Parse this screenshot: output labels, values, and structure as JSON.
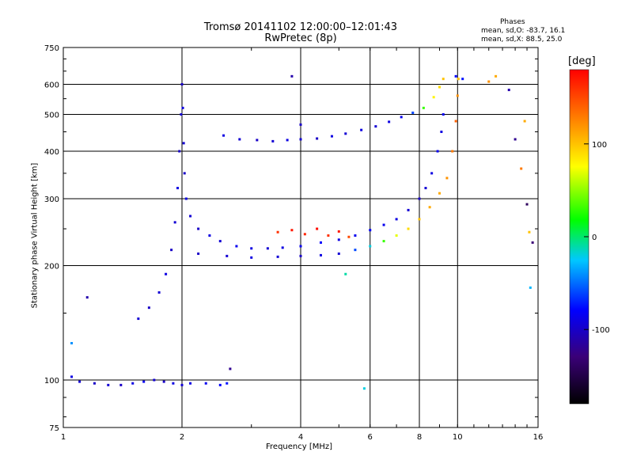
{
  "header": {
    "title_line1": "Tromsø 20141102 12:00:00–12:01:43",
    "title_line2": "RwPretec (8p)",
    "stats_title": "Phases",
    "stats_o": "mean, sd,O: -83.7, 16.1",
    "stats_x": "mean, sd,X:  88.5, 25.0"
  },
  "colorbar": {
    "label": "[deg]",
    "ticks": [
      "100",
      "0",
      "-100"
    ],
    "tick_values": [
      100,
      0,
      -100
    ],
    "range": [
      -180,
      180
    ],
    "colors": [
      "#000000",
      "#3a0077",
      "#0000ff",
      "#00c8ff",
      "#00ff00",
      "#ffff00",
      "#ff7a00",
      "#ff0000"
    ]
  },
  "chart_data": {
    "type": "scatter",
    "title": "Tromsø 20141102 12:00:00–12:01:43",
    "subtitle": "RwPretec (8p)",
    "xlabel": "Frequency [MHz]",
    "ylabel": "Stationary phase Virtual Height [km]",
    "x_scale": "log",
    "y_scale": "log",
    "xlim": [
      1,
      16
    ],
    "ylim": [
      75,
      750
    ],
    "x_ticks": [
      1,
      2,
      4,
      6,
      8,
      10,
      16
    ],
    "x_tick_labels": [
      "1",
      "2",
      "4",
      "6",
      "8",
      "10",
      "16"
    ],
    "y_ticks": [
      75,
      100,
      200,
      300,
      400,
      500,
      600,
      750
    ],
    "y_tick_labels": [
      "75",
      "100",
      "200",
      "300",
      "400",
      "500",
      "600",
      "750"
    ],
    "grid": true,
    "color_by": "phase [deg]",
    "series": [
      {
        "points": [
          [
            1.05,
            102,
            -90
          ],
          [
            1.1,
            99,
            -95
          ],
          [
            1.2,
            98,
            -100
          ],
          [
            1.3,
            97,
            -95
          ],
          [
            1.4,
            97,
            -100
          ],
          [
            1.5,
            98,
            -90
          ],
          [
            1.6,
            99,
            -85
          ],
          [
            1.7,
            100,
            -95
          ],
          [
            1.8,
            99,
            -100
          ],
          [
            1.9,
            98,
            -90
          ],
          [
            2.0,
            97,
            -95
          ],
          [
            2.1,
            98,
            -90
          ],
          [
            2.3,
            98,
            -85
          ],
          [
            2.5,
            97,
            -80
          ],
          [
            2.6,
            98,
            -75
          ]
        ]
      },
      {
        "points": [
          [
            1.55,
            145,
            -95
          ],
          [
            1.65,
            155,
            -100
          ],
          [
            1.75,
            170,
            -95
          ],
          [
            1.82,
            190,
            -90
          ],
          [
            1.88,
            220,
            -100
          ],
          [
            1.92,
            260,
            -95
          ],
          [
            1.95,
            320,
            -90
          ],
          [
            1.97,
            400,
            -100
          ],
          [
            1.99,
            500,
            -95
          ],
          [
            2.0,
            600,
            -100
          ],
          [
            2.01,
            520,
            -90
          ],
          [
            2.02,
            420,
            -95
          ],
          [
            2.03,
            350,
            -100
          ],
          [
            2.05,
            300,
            -90
          ],
          [
            2.1,
            270,
            -95
          ],
          [
            2.2,
            250,
            -100
          ],
          [
            2.35,
            240,
            -90
          ],
          [
            2.5,
            232,
            -95
          ],
          [
            2.75,
            225,
            -85
          ],
          [
            3.0,
            222,
            -90
          ],
          [
            3.3,
            222,
            -95
          ],
          [
            3.6,
            223,
            -90
          ],
          [
            4.0,
            225,
            -85
          ],
          [
            4.5,
            230,
            -80
          ],
          [
            5.0,
            234,
            -90
          ],
          [
            5.5,
            240,
            -85
          ],
          [
            6.0,
            248,
            -80
          ],
          [
            6.5,
            256,
            -85
          ],
          [
            7.0,
            265,
            -90
          ],
          [
            7.5,
            280,
            -95
          ],
          [
            8.0,
            300,
            -100
          ],
          [
            8.3,
            320,
            -95
          ],
          [
            8.6,
            350,
            -90
          ],
          [
            8.9,
            400,
            -85
          ],
          [
            9.1,
            450,
            -90
          ],
          [
            9.2,
            500,
            -85
          ]
        ]
      },
      {
        "points": [
          [
            2.2,
            215,
            -100
          ],
          [
            2.6,
            212,
            -95
          ],
          [
            3.0,
            210,
            -90
          ],
          [
            3.5,
            211,
            -95
          ],
          [
            4.0,
            212,
            -100
          ],
          [
            4.5,
            213,
            -90
          ],
          [
            5.0,
            215,
            -95
          ],
          [
            5.5,
            220,
            -60
          ],
          [
            6.0,
            225,
            -20
          ],
          [
            6.5,
            232,
            30
          ],
          [
            7.0,
            240,
            70
          ],
          [
            7.5,
            250,
            90
          ],
          [
            8.0,
            265,
            100
          ],
          [
            8.5,
            285,
            110
          ],
          [
            9.0,
            310,
            110
          ],
          [
            9.4,
            340,
            120
          ],
          [
            9.7,
            400,
            130
          ],
          [
            9.9,
            480,
            140
          ],
          [
            10.0,
            560,
            120
          ],
          [
            10.05,
            620,
            100
          ]
        ]
      },
      {
        "points": [
          [
            3.5,
            245,
            160
          ],
          [
            3.8,
            248,
            170
          ],
          [
            4.1,
            242,
            165
          ],
          [
            4.4,
            250,
            175
          ],
          [
            4.7,
            240,
            160
          ],
          [
            5.0,
            246,
            170
          ],
          [
            5.3,
            238,
            150
          ]
        ]
      },
      {
        "points": [
          [
            2.55,
            440,
            -90
          ],
          [
            2.8,
            430,
            -95
          ],
          [
            3.1,
            428,
            -100
          ],
          [
            3.4,
            425,
            -95
          ],
          [
            3.7,
            428,
            -90
          ],
          [
            4.0,
            430,
            -95
          ],
          [
            4.4,
            432,
            -100
          ],
          [
            4.8,
            438,
            -90
          ],
          [
            5.2,
            445,
            -95
          ],
          [
            5.7,
            455,
            -90
          ],
          [
            6.2,
            465,
            -95
          ],
          [
            6.7,
            478,
            -90
          ],
          [
            7.2,
            492,
            -85
          ],
          [
            7.7,
            505,
            -60
          ],
          [
            8.2,
            520,
            30
          ],
          [
            8.7,
            555,
            80
          ],
          [
            9.0,
            590,
            90
          ],
          [
            9.2,
            620,
            100
          ]
        ]
      },
      {
        "points": [
          [
            9.9,
            630,
            -80
          ],
          [
            10.3,
            620,
            -75
          ],
          [
            12.0,
            610,
            120
          ],
          [
            12.5,
            630,
            110
          ],
          [
            13.5,
            580,
            -110
          ],
          [
            14.0,
            430,
            -120
          ],
          [
            14.5,
            360,
            130
          ],
          [
            15.0,
            290,
            -140
          ],
          [
            15.2,
            245,
            100
          ],
          [
            15.5,
            230,
            -130
          ],
          [
            15.3,
            175,
            -30
          ],
          [
            14.8,
            480,
            110
          ],
          [
            5.2,
            190,
            -10
          ],
          [
            5.8,
            95,
            -20
          ],
          [
            2.65,
            107,
            -120
          ],
          [
            1.15,
            165,
            -110
          ],
          [
            1.05,
            125,
            -40
          ],
          [
            3.8,
            630,
            -110
          ],
          [
            4.0,
            470,
            -100
          ]
        ]
      }
    ]
  }
}
